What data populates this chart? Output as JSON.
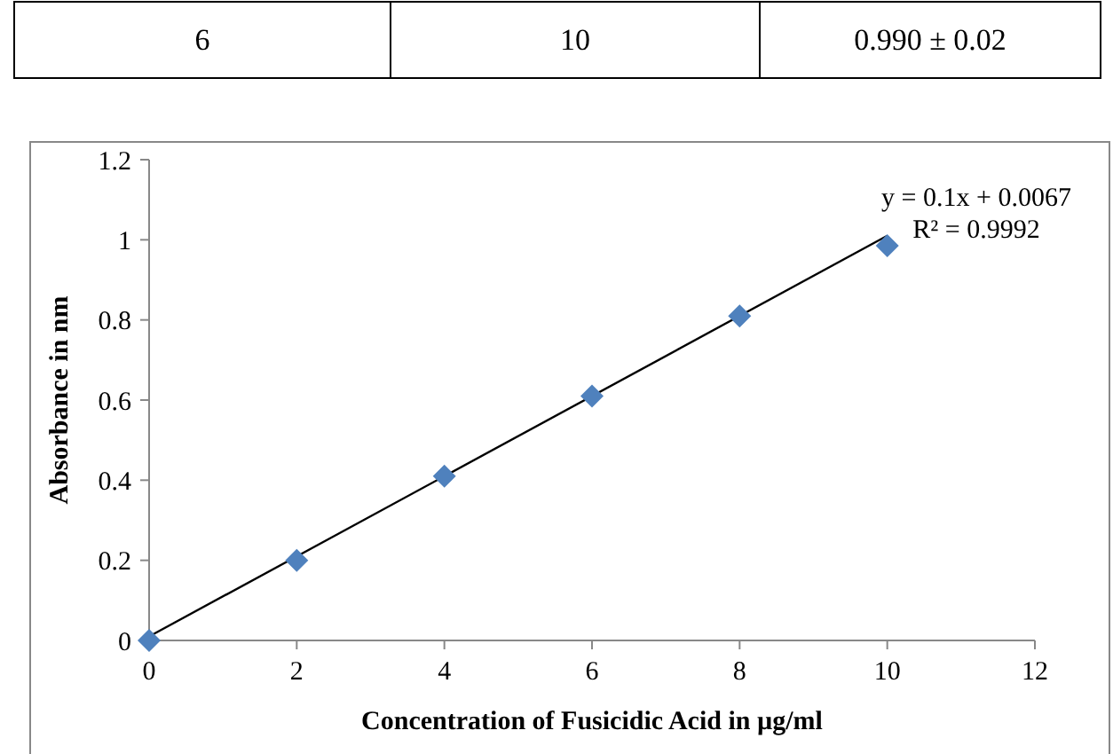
{
  "chart_data": {
    "type": "scatter",
    "xlabel": "Concentration of Fusicidic Acid  in µg/ml",
    "ylabel": "Absorbance  in nm",
    "x": [
      0,
      2,
      4,
      6,
      8,
      10
    ],
    "series": [
      {
        "color": "#4f81bd",
        "marker": "diamond",
        "values": [
          0,
          0.2,
          0.41,
          0.61,
          0.81,
          0.985
        ]
      },
      {
        "type": "line",
        "color": "#000000",
        "line_style": "solid",
        "x": [
          0,
          10
        ],
        "values": [
          0.01,
          1.01
        ]
      }
    ],
    "xlim": [
      0,
      12
    ],
    "xticks": [
      0,
      2,
      4,
      6,
      8,
      10,
      12
    ],
    "ylim": [
      0,
      1.2
    ],
    "yticks": [
      0,
      0.2,
      0.4,
      0.6,
      0.8,
      1,
      {
        "value": 1.2,
        "label": "1.2"
      }
    ],
    "grid": false,
    "annotations": [
      "6",
      "10",
      "0.990 ± 0.02",
      "y = 0.1x + 0.0067",
      "R² = 0.9992"
    ]
  }
}
